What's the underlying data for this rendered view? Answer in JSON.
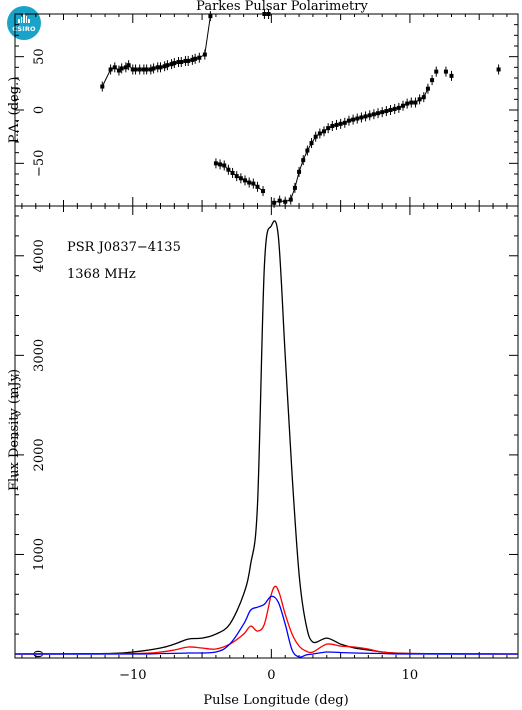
{
  "logo": {
    "text": "CSIRO"
  },
  "chart_data": [
    {
      "panel": "top",
      "type": "scatter",
      "title": "Parkes Pulsar Polarimetry",
      "ylabel": "P.A. (deg.)",
      "xlim": [
        -18.5,
        17.8
      ],
      "ylim": [
        -90,
        90
      ],
      "yticks": [
        -50,
        0,
        50
      ],
      "series": [
        {
          "points": [
            [
              -12.2,
              22
            ],
            [
              -11.6,
              38
            ],
            [
              -11.3,
              40
            ],
            [
              -11.0,
              37
            ],
            [
              -10.8,
              39
            ],
            [
              -10.5,
              40
            ],
            [
              -10.3,
              42
            ],
            [
              -10.0,
              38
            ],
            [
              -9.8,
              38
            ],
            [
              -9.5,
              38
            ],
            [
              -9.2,
              38
            ],
            [
              -9.0,
              38
            ],
            [
              -8.7,
              38
            ],
            [
              -8.5,
              39
            ],
            [
              -8.2,
              40
            ],
            [
              -8.0,
              40
            ],
            [
              -7.7,
              41
            ],
            [
              -7.5,
              42
            ],
            [
              -7.2,
              43
            ],
            [
              -7.0,
              44
            ],
            [
              -6.7,
              45
            ],
            [
              -6.5,
              45
            ],
            [
              -6.2,
              46
            ],
            [
              -6.0,
              46
            ],
            [
              -5.7,
              47
            ],
            [
              -5.5,
              48
            ],
            [
              -5.2,
              49
            ],
            [
              -4.8,
              52
            ],
            [
              -4.4,
              88
            ],
            [
              -0.5,
              90
            ],
            [
              -0.2,
              90
            ],
            [
              -4.0,
              -50
            ],
            [
              -3.7,
              -51
            ],
            [
              -3.4,
              -52
            ],
            [
              -3.1,
              -56
            ],
            [
              -2.8,
              -59
            ],
            [
              -2.5,
              -62
            ],
            [
              -2.2,
              -64
            ],
            [
              -1.9,
              -66
            ],
            [
              -1.6,
              -68
            ],
            [
              -1.3,
              -69
            ],
            [
              -1.0,
              -72
            ],
            [
              -0.6,
              -76
            ],
            [
              0.2,
              -87
            ],
            [
              0.6,
              -85
            ],
            [
              1.0,
              -86
            ],
            [
              1.4,
              -84
            ],
            [
              1.7,
              -73
            ],
            [
              2.0,
              -58
            ],
            [
              2.3,
              -47
            ],
            [
              2.6,
              -38
            ],
            [
              2.9,
              -31
            ],
            [
              3.2,
              -25
            ],
            [
              3.5,
              -22
            ],
            [
              3.8,
              -20
            ],
            [
              4.1,
              -17
            ],
            [
              4.4,
              -15
            ],
            [
              4.7,
              -14
            ],
            [
              5.0,
              -13
            ],
            [
              5.3,
              -12
            ],
            [
              5.6,
              -10
            ],
            [
              5.9,
              -9
            ],
            [
              6.2,
              -8
            ],
            [
              6.5,
              -7
            ],
            [
              6.8,
              -6
            ],
            [
              7.1,
              -5
            ],
            [
              7.4,
              -4
            ],
            [
              7.7,
              -3
            ],
            [
              8.0,
              -2
            ],
            [
              8.3,
              -1
            ],
            [
              8.6,
              0
            ],
            [
              8.9,
              1
            ],
            [
              9.2,
              2
            ],
            [
              9.5,
              4
            ],
            [
              9.8,
              6
            ],
            [
              10.1,
              7
            ],
            [
              10.4,
              7
            ],
            [
              10.7,
              10
            ],
            [
              11.0,
              12
            ],
            [
              11.3,
              20
            ],
            [
              11.6,
              28
            ],
            [
              11.9,
              36
            ],
            [
              12.6,
              36
            ],
            [
              13.0,
              32
            ],
            [
              16.4,
              38
            ]
          ]
        }
      ]
    },
    {
      "panel": "bottom",
      "type": "line",
      "xlabel": "Pulse Longitude (deg)",
      "ylabel": "Flux Density (mJy)",
      "xlim": [
        -18.5,
        17.8
      ],
      "ylim": [
        -40,
        4500
      ],
      "xticks": [
        -10,
        0,
        10
      ],
      "yticks": [
        0,
        1000,
        2000,
        3000,
        4000
      ],
      "annotations": [
        "PSR J0837−4135",
        "1368 MHz"
      ],
      "series": [
        {
          "color": "#000000",
          "x": [
            -18.5,
            -12,
            -10,
            -8,
            -7,
            -6,
            -5,
            -4,
            -3,
            -2,
            -1.5,
            -1,
            -0.5,
            0,
            0.5,
            1,
            1.5,
            2,
            2.5,
            3,
            4,
            5,
            6,
            7,
            8,
            10,
            17.8
          ],
          "y": [
            0,
            5,
            20,
            60,
            100,
            150,
            160,
            200,
            300,
            600,
            900,
            1500,
            3900,
            4300,
            4200,
            3000,
            1800,
            800,
            300,
            120,
            160,
            100,
            60,
            40,
            20,
            5,
            0
          ]
        },
        {
          "color": "#ff0000",
          "x": [
            -18.5,
            -10,
            -8,
            -7,
            -6,
            -5,
            -4,
            -3,
            -2,
            -1.5,
            -1,
            -0.5,
            0,
            0.3,
            0.6,
            1,
            1.5,
            2,
            2.5,
            3,
            4,
            5,
            6,
            7,
            8,
            10,
            17.8
          ],
          "y": [
            0,
            5,
            20,
            40,
            70,
            60,
            50,
            100,
            200,
            280,
            230,
            300,
            600,
            680,
            600,
            400,
            200,
            80,
            30,
            20,
            100,
            80,
            70,
            50,
            20,
            5,
            0
          ]
        },
        {
          "color": "#0000ff",
          "x": [
            -18.5,
            -10,
            -8,
            -6,
            -4,
            -3,
            -2,
            -1.5,
            -1,
            -0.5,
            0,
            0.5,
            1,
            1.5,
            2,
            2.5,
            3,
            4,
            5,
            6,
            8,
            10,
            17.8
          ],
          "y": [
            0,
            0,
            5,
            10,
            20,
            100,
            300,
            440,
            470,
            500,
            580,
            520,
            300,
            40,
            -30,
            -10,
            0,
            20,
            15,
            10,
            5,
            0,
            0
          ]
        }
      ]
    }
  ]
}
